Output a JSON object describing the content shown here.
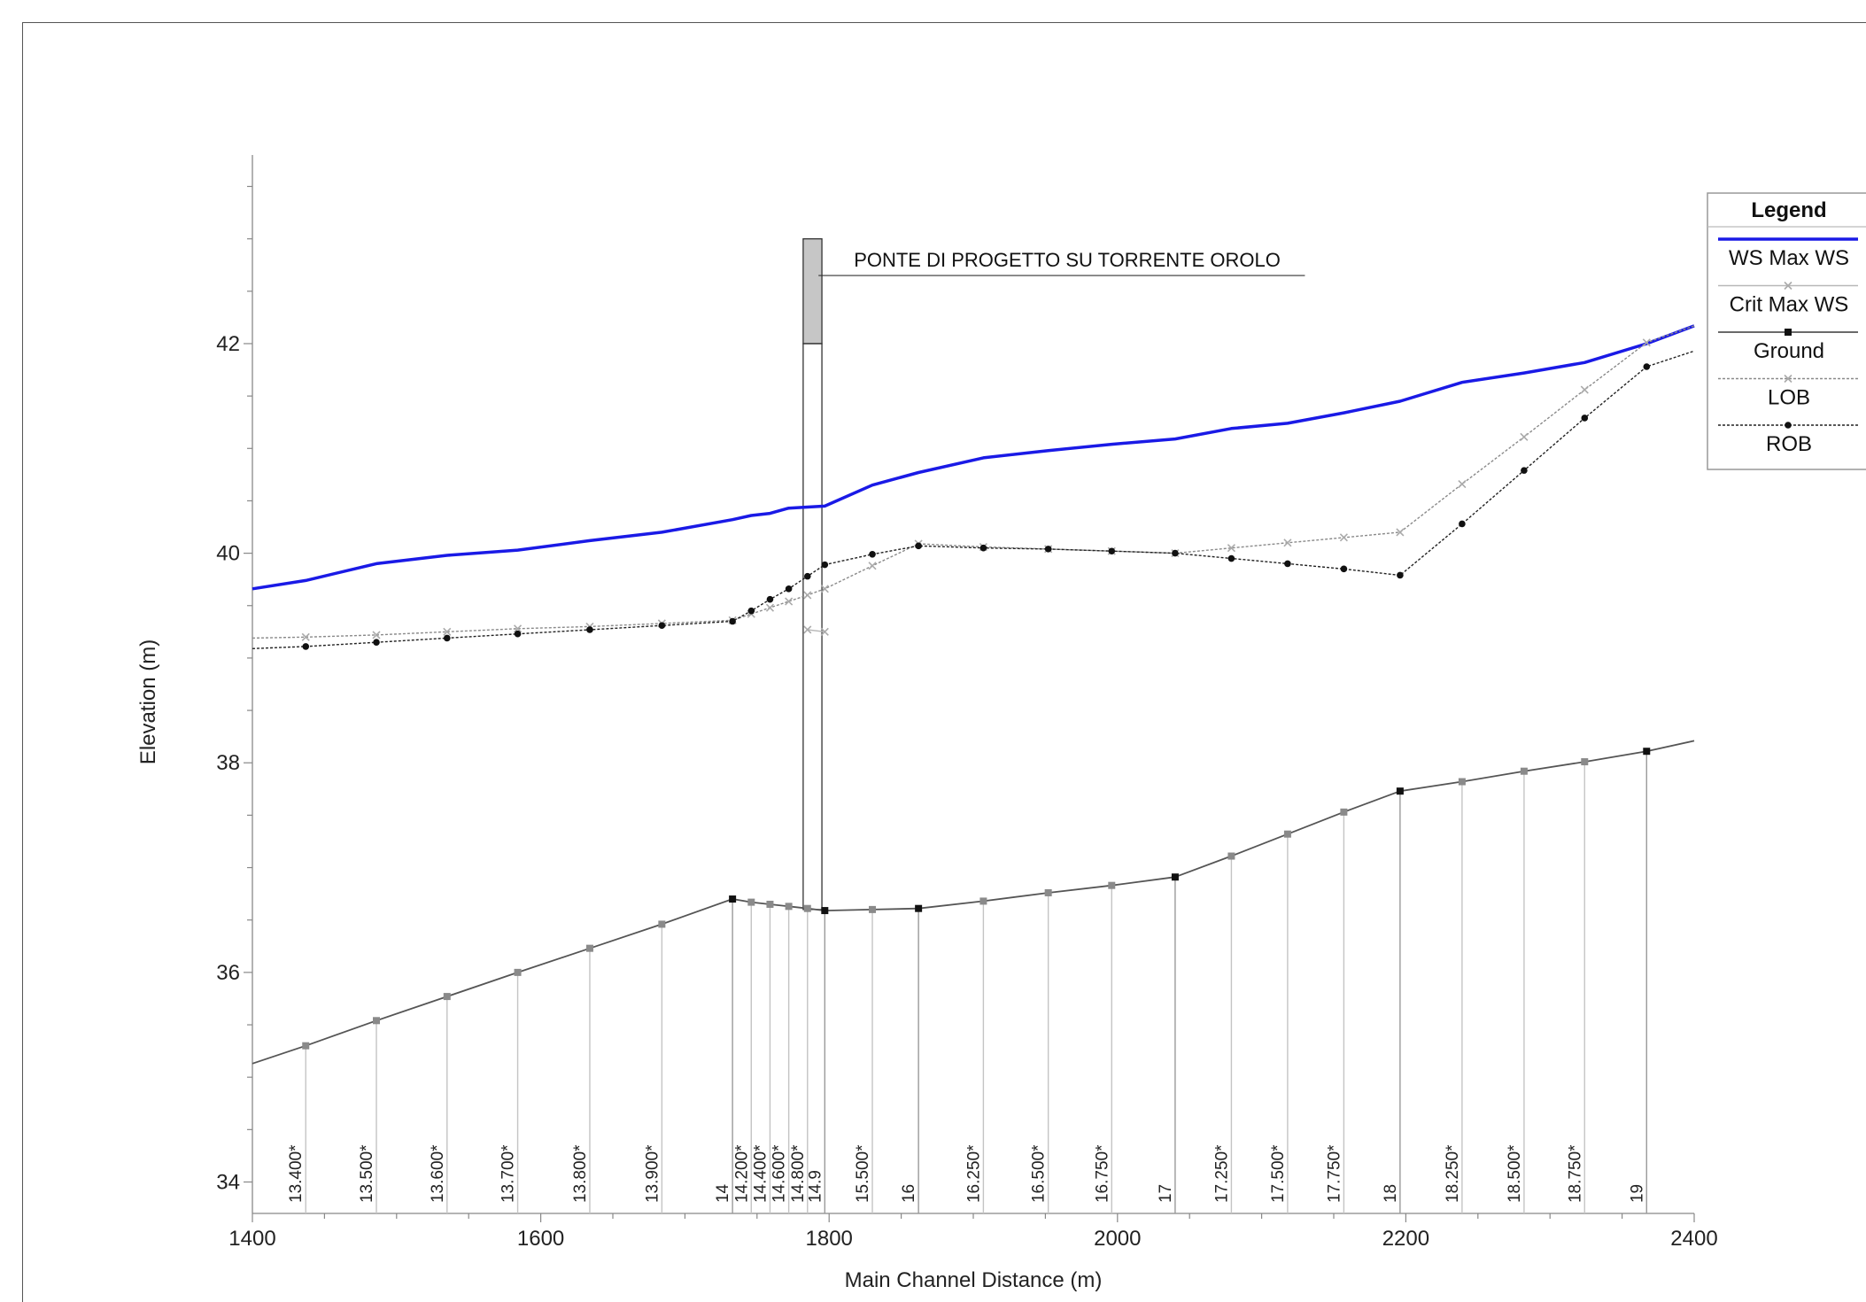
{
  "chart_data": {
    "type": "line",
    "title": "",
    "xlabel": "Main Channel Distance (m)",
    "ylabel": "Elevation (m)",
    "xlim": [
      1400,
      2400
    ],
    "ylim": [
      33.7,
      43.8
    ],
    "xticks": [
      1400,
      1600,
      1800,
      2000,
      2200,
      2400
    ],
    "yticks": [
      34,
      36,
      38,
      40,
      42
    ],
    "grid": false,
    "legend_position": "right",
    "legend": {
      "title": "Legend",
      "entries": [
        {
          "label": "WS  Max WS",
          "color": "#1a1ae6",
          "style": "solid-thick"
        },
        {
          "label": "Crit  Max WS",
          "color": "#b0b0b0",
          "style": "x-marker"
        },
        {
          "label": "Ground",
          "color": "#555555",
          "style": "square-marker"
        },
        {
          "label": "LOB",
          "color": "#888888",
          "style": "dotted-x"
        },
        {
          "label": "ROB",
          "color": "#222222",
          "style": "dotted-dot"
        }
      ]
    },
    "annotation": {
      "text": "PONTE DI PROGETTO SU TORRENTE OROLO",
      "x": [
        1800,
        2130
      ],
      "y": 42.65
    },
    "bridge": {
      "x": [
        1782,
        1795
      ],
      "deck_top": 43.0,
      "deck_bottom": 42.0
    },
    "stations": [
      {
        "label": "13.400*",
        "x": 1437,
        "major": false
      },
      {
        "label": "13.500*",
        "x": 1486,
        "major": false
      },
      {
        "label": "13.600*",
        "x": 1535,
        "major": false
      },
      {
        "label": "13.700*",
        "x": 1584,
        "major": false
      },
      {
        "label": "13.800*",
        "x": 1634,
        "major": false
      },
      {
        "label": "13.900*",
        "x": 1684,
        "major": false
      },
      {
        "label": "14",
        "x": 1733,
        "major": true
      },
      {
        "label": "14.200*",
        "x": 1746,
        "major": false
      },
      {
        "label": "14.400*",
        "x": 1759,
        "major": false
      },
      {
        "label": "14.600*",
        "x": 1772,
        "major": false
      },
      {
        "label": "14.800*",
        "x": 1785,
        "major": false
      },
      {
        "label": "14.9",
        "x": 1797,
        "major": true
      },
      {
        "label": "15.500*",
        "x": 1830,
        "major": false
      },
      {
        "label": "16",
        "x": 1862,
        "major": true
      },
      {
        "label": "16.250*",
        "x": 1907,
        "major": false
      },
      {
        "label": "16.500*",
        "x": 1952,
        "major": false
      },
      {
        "label": "16.750*",
        "x": 1996,
        "major": false
      },
      {
        "label": "17",
        "x": 2040,
        "major": true
      },
      {
        "label": "17.250*",
        "x": 2079,
        "major": false
      },
      {
        "label": "17.500*",
        "x": 2118,
        "major": false
      },
      {
        "label": "17.750*",
        "x": 2157,
        "major": false
      },
      {
        "label": "18",
        "x": 2196,
        "major": true
      },
      {
        "label": "18.250*",
        "x": 2239,
        "major": false
      },
      {
        "label": "18.500*",
        "x": 2282,
        "major": false
      },
      {
        "label": "18.750*",
        "x": 2324,
        "major": false
      },
      {
        "label": "19",
        "x": 2367,
        "major": true
      }
    ],
    "series": [
      {
        "name": "WS  Max WS",
        "x": [
          1400,
          1437,
          1486,
          1535,
          1584,
          1634,
          1684,
          1733,
          1746,
          1759,
          1772,
          1785,
          1797,
          1830,
          1862,
          1907,
          1952,
          1996,
          2040,
          2079,
          2118,
          2157,
          2196,
          2239,
          2282,
          2324,
          2367,
          2400
        ],
        "y": [
          39.66,
          39.74,
          39.9,
          39.98,
          40.03,
          40.12,
          40.2,
          40.32,
          40.36,
          40.38,
          40.43,
          40.44,
          40.45,
          40.65,
          40.77,
          40.91,
          40.98,
          41.04,
          41.09,
          41.19,
          41.24,
          41.34,
          41.45,
          41.63,
          41.72,
          41.82,
          42.0,
          42.17
        ]
      },
      {
        "name": "Crit  Max WS",
        "x": [
          1785,
          1797
        ],
        "y": [
          39.27,
          39.25
        ]
      },
      {
        "name": "Ground",
        "x": [
          1400,
          1437,
          1486,
          1535,
          1584,
          1634,
          1684,
          1733,
          1746,
          1759,
          1772,
          1785,
          1797,
          1830,
          1862,
          1907,
          1952,
          1996,
          2040,
          2079,
          2118,
          2157,
          2196,
          2239,
          2282,
          2324,
          2367,
          2400
        ],
        "y": [
          35.13,
          35.3,
          35.54,
          35.77,
          36.0,
          36.23,
          36.46,
          36.7,
          36.67,
          36.65,
          36.63,
          36.61,
          36.59,
          36.6,
          36.61,
          36.68,
          36.76,
          36.83,
          36.91,
          37.11,
          37.32,
          37.53,
          37.73,
          37.82,
          37.92,
          38.01,
          38.11,
          38.21
        ]
      },
      {
        "name": "LOB",
        "x": [
          1400,
          1437,
          1486,
          1535,
          1584,
          1634,
          1684,
          1733,
          1746,
          1759,
          1772,
          1785,
          1797,
          1830,
          1862,
          1907,
          1952,
          1996,
          2040,
          2079,
          2118,
          2157,
          2196,
          2239,
          2282,
          2324,
          2367,
          2400
        ],
        "y": [
          39.19,
          39.2,
          39.22,
          39.25,
          39.28,
          39.3,
          39.33,
          39.36,
          39.42,
          39.48,
          39.54,
          39.6,
          39.66,
          39.88,
          40.09,
          40.06,
          40.04,
          40.02,
          40.0,
          40.05,
          40.1,
          40.15,
          40.2,
          40.66,
          41.11,
          41.56,
          42.01,
          42.17
        ]
      },
      {
        "name": "ROB",
        "x": [
          1400,
          1437,
          1486,
          1535,
          1584,
          1634,
          1684,
          1733,
          1746,
          1759,
          1772,
          1785,
          1797,
          1830,
          1862,
          1907,
          1952,
          1996,
          2040,
          2079,
          2118,
          2157,
          2196,
          2239,
          2282,
          2324,
          2367,
          2400
        ],
        "y": [
          39.09,
          39.11,
          39.15,
          39.19,
          39.23,
          39.27,
          39.31,
          39.35,
          39.45,
          39.56,
          39.66,
          39.78,
          39.89,
          39.99,
          40.07,
          40.05,
          40.04,
          40.02,
          40.0,
          39.95,
          39.9,
          39.85,
          39.79,
          40.28,
          40.79,
          41.29,
          41.78,
          41.93
        ]
      }
    ]
  }
}
